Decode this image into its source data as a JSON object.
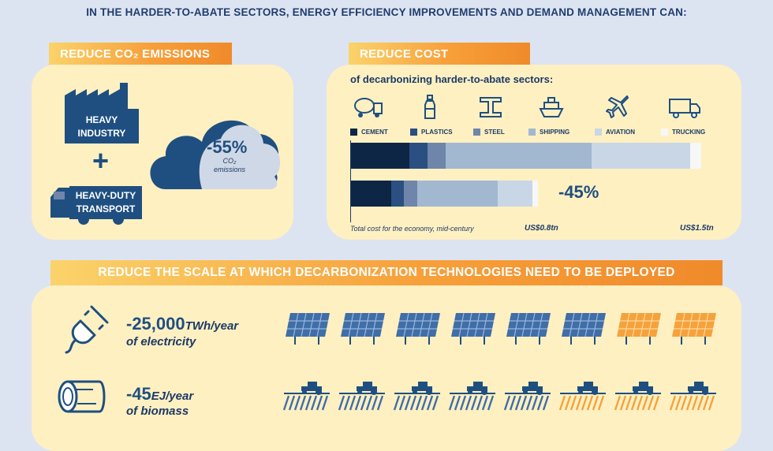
{
  "headline": "IN THE HARDER-TO-ABATE SECTORS, ENERGY EFFICIENCY IMPROVEMENTS AND DEMAND MANAGEMENT CAN:",
  "co2": {
    "tag": "REDUCE CO₂ EMISSIONS",
    "heavy_industry": "HEAVY INDUSTRY",
    "plus": "+",
    "heavy_transport": "HEAVY-DUTY TRANSPORT",
    "percent": "-55%",
    "caption": "CO₂ emissions"
  },
  "cost": {
    "tag": "REDUCE COST",
    "subtitle": "of decarbonizing harder-to-abate sectors:",
    "legend": [
      "CEMENT",
      "PLASTICS",
      "STEEL",
      "SHIPPING",
      "AVIATION",
      "TRUCKING"
    ],
    "colors": [
      "#0d2645",
      "#2a4f80",
      "#6f86aa",
      "#a2b8d0",
      "#c9d6e6",
      "#f7f7f7"
    ],
    "bar_full": [
      16,
      5,
      5,
      40,
      27,
      3
    ],
    "bar_reduced": [
      22,
      7,
      7,
      44,
      19,
      3
    ],
    "reduced_total": 0.8,
    "full_total": 1.5,
    "percent": "-45%",
    "axis_caption": "Total cost for the economy, mid-century",
    "label_reduced": "US$0.8tn",
    "label_full": "US$1.5tn"
  },
  "scale": {
    "tag": "REDUCE THE SCALE AT WHICH DECARBONIZATION TECHNOLOGIES NEED TO BE DEPLOYED",
    "electricity": {
      "value": "-25,000",
      "unit": "TWh/year",
      "label": "of electricity"
    },
    "biomass": {
      "value": "-45",
      "unit": "EJ/year",
      "label": "of biomass"
    }
  }
}
